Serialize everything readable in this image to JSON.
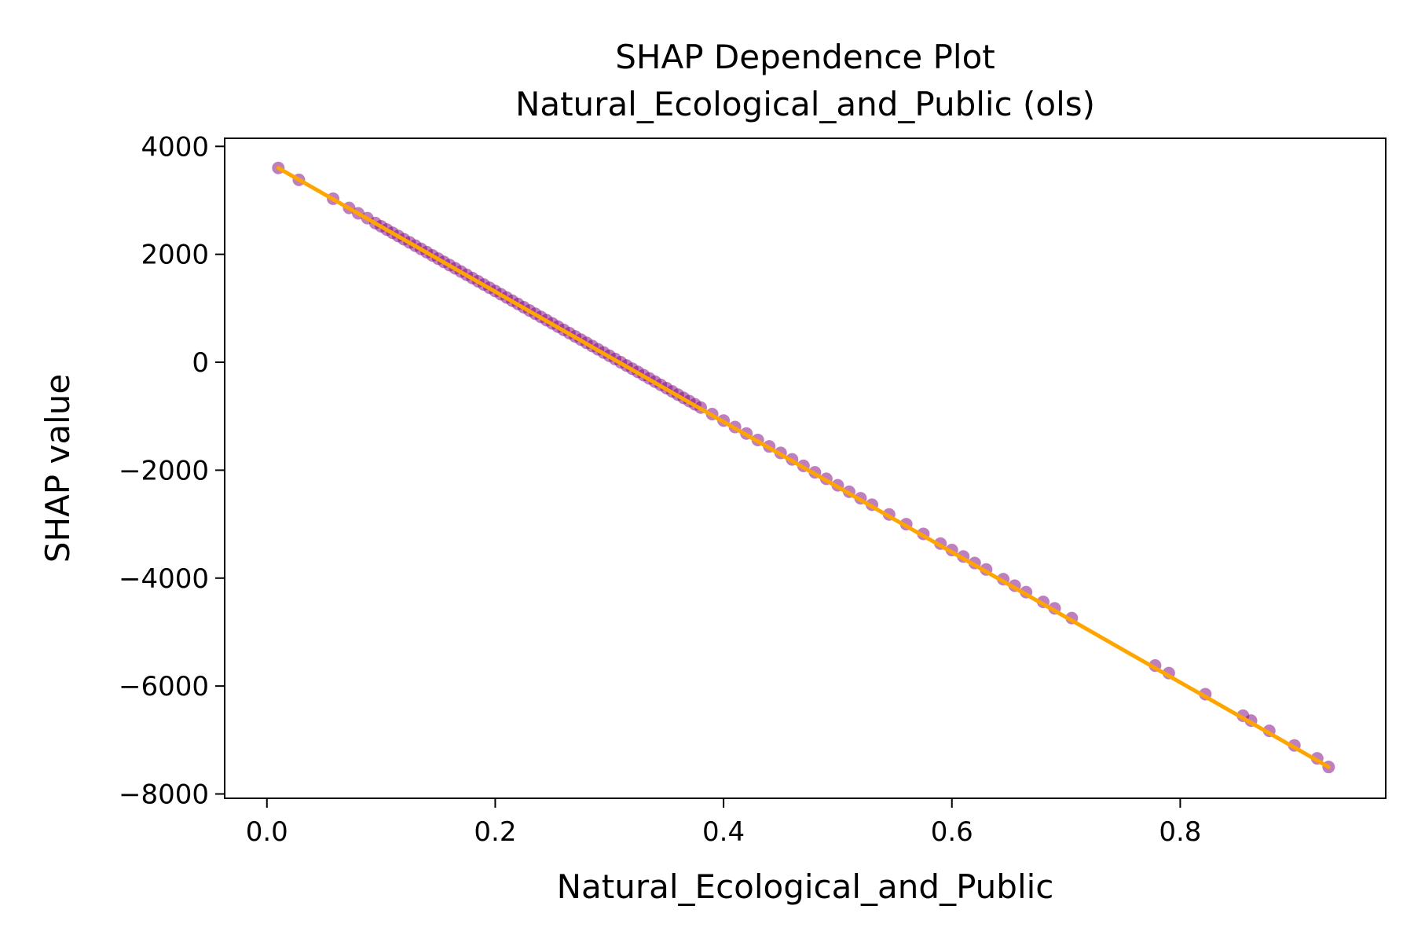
{
  "chart_data": {
    "type": "scatter",
    "title": "SHAP Dependence Plot",
    "subtitle": "Natural_Ecological_and_Public (ols)",
    "xlabel": "Natural_Ecological_and_Public",
    "ylabel": "SHAP value",
    "xlim": [
      -0.037,
      0.98
    ],
    "ylim": [
      -8080,
      4150
    ],
    "xticks": [
      0.0,
      0.2,
      0.4,
      0.6,
      0.8
    ],
    "xtick_labels": [
      "0.0",
      "0.2",
      "0.4",
      "0.6",
      "0.8"
    ],
    "yticks": [
      4000,
      2000,
      0,
      -2000,
      -4000,
      -6000,
      -8000
    ],
    "ytick_labels": [
      "4000",
      "2000",
      "0",
      "−2000",
      "−4000",
      "−6000",
      "−8000"
    ],
    "grid": false,
    "colors": {
      "points": "#800080",
      "fit_line": "#ffa500"
    },
    "fit_line": {
      "x": [
        0.01,
        0.93
      ],
      "y": [
        3600,
        -7500
      ]
    },
    "series": [
      {
        "x": [
          0.01,
          0.028,
          0.058,
          0.072,
          0.08,
          0.088,
          0.095,
          0.1,
          0.105,
          0.11,
          0.115,
          0.12,
          0.125,
          0.13,
          0.135,
          0.14,
          0.145,
          0.15,
          0.155,
          0.16,
          0.165,
          0.17,
          0.175,
          0.18,
          0.185,
          0.19,
          0.195,
          0.2,
          0.205,
          0.21,
          0.215,
          0.22,
          0.225,
          0.23,
          0.235,
          0.24,
          0.245,
          0.25,
          0.255,
          0.26,
          0.265,
          0.27,
          0.275,
          0.28,
          0.285,
          0.29,
          0.295,
          0.3,
          0.305,
          0.31,
          0.315,
          0.32,
          0.325,
          0.33,
          0.335,
          0.34,
          0.345,
          0.35,
          0.355,
          0.36,
          0.365,
          0.37,
          0.375,
          0.38,
          0.39,
          0.4,
          0.41,
          0.42,
          0.43,
          0.44,
          0.45,
          0.46,
          0.47,
          0.48,
          0.49,
          0.5,
          0.51,
          0.52,
          0.53,
          0.545,
          0.56,
          0.575,
          0.59,
          0.6,
          0.61,
          0.62,
          0.63,
          0.645,
          0.655,
          0.665,
          0.68,
          0.69,
          0.705,
          0.778,
          0.79,
          0.822,
          0.855,
          0.862,
          0.878,
          0.9,
          0.92,
          0.93
        ],
        "y": [
          3600,
          3380,
          3030,
          2860,
          2760,
          2670,
          2580,
          2520,
          2460,
          2400,
          2340,
          2280,
          2220,
          2160,
          2100,
          2040,
          1980,
          1920,
          1860,
          1800,
          1740,
          1680,
          1620,
          1560,
          1500,
          1440,
          1380,
          1320,
          1260,
          1200,
          1140,
          1080,
          1020,
          960,
          900,
          840,
          780,
          720,
          660,
          600,
          540,
          480,
          420,
          360,
          300,
          240,
          180,
          120,
          60,
          0,
          -60,
          -120,
          -180,
          -240,
          -300,
          -360,
          -420,
          -480,
          -540,
          -600,
          -660,
          -720,
          -780,
          -840,
          -960,
          -1080,
          -1200,
          -1320,
          -1440,
          -1560,
          -1680,
          -1800,
          -1920,
          -2040,
          -2160,
          -2280,
          -2400,
          -2520,
          -2640,
          -2820,
          -3000,
          -3180,
          -3360,
          -3480,
          -3600,
          -3720,
          -3840,
          -4020,
          -4140,
          -4260,
          -4440,
          -4560,
          -4740,
          -5620,
          -5760,
          -6150,
          -6550,
          -6640,
          -6830,
          -7100,
          -7340,
          -7500
        ]
      }
    ]
  }
}
